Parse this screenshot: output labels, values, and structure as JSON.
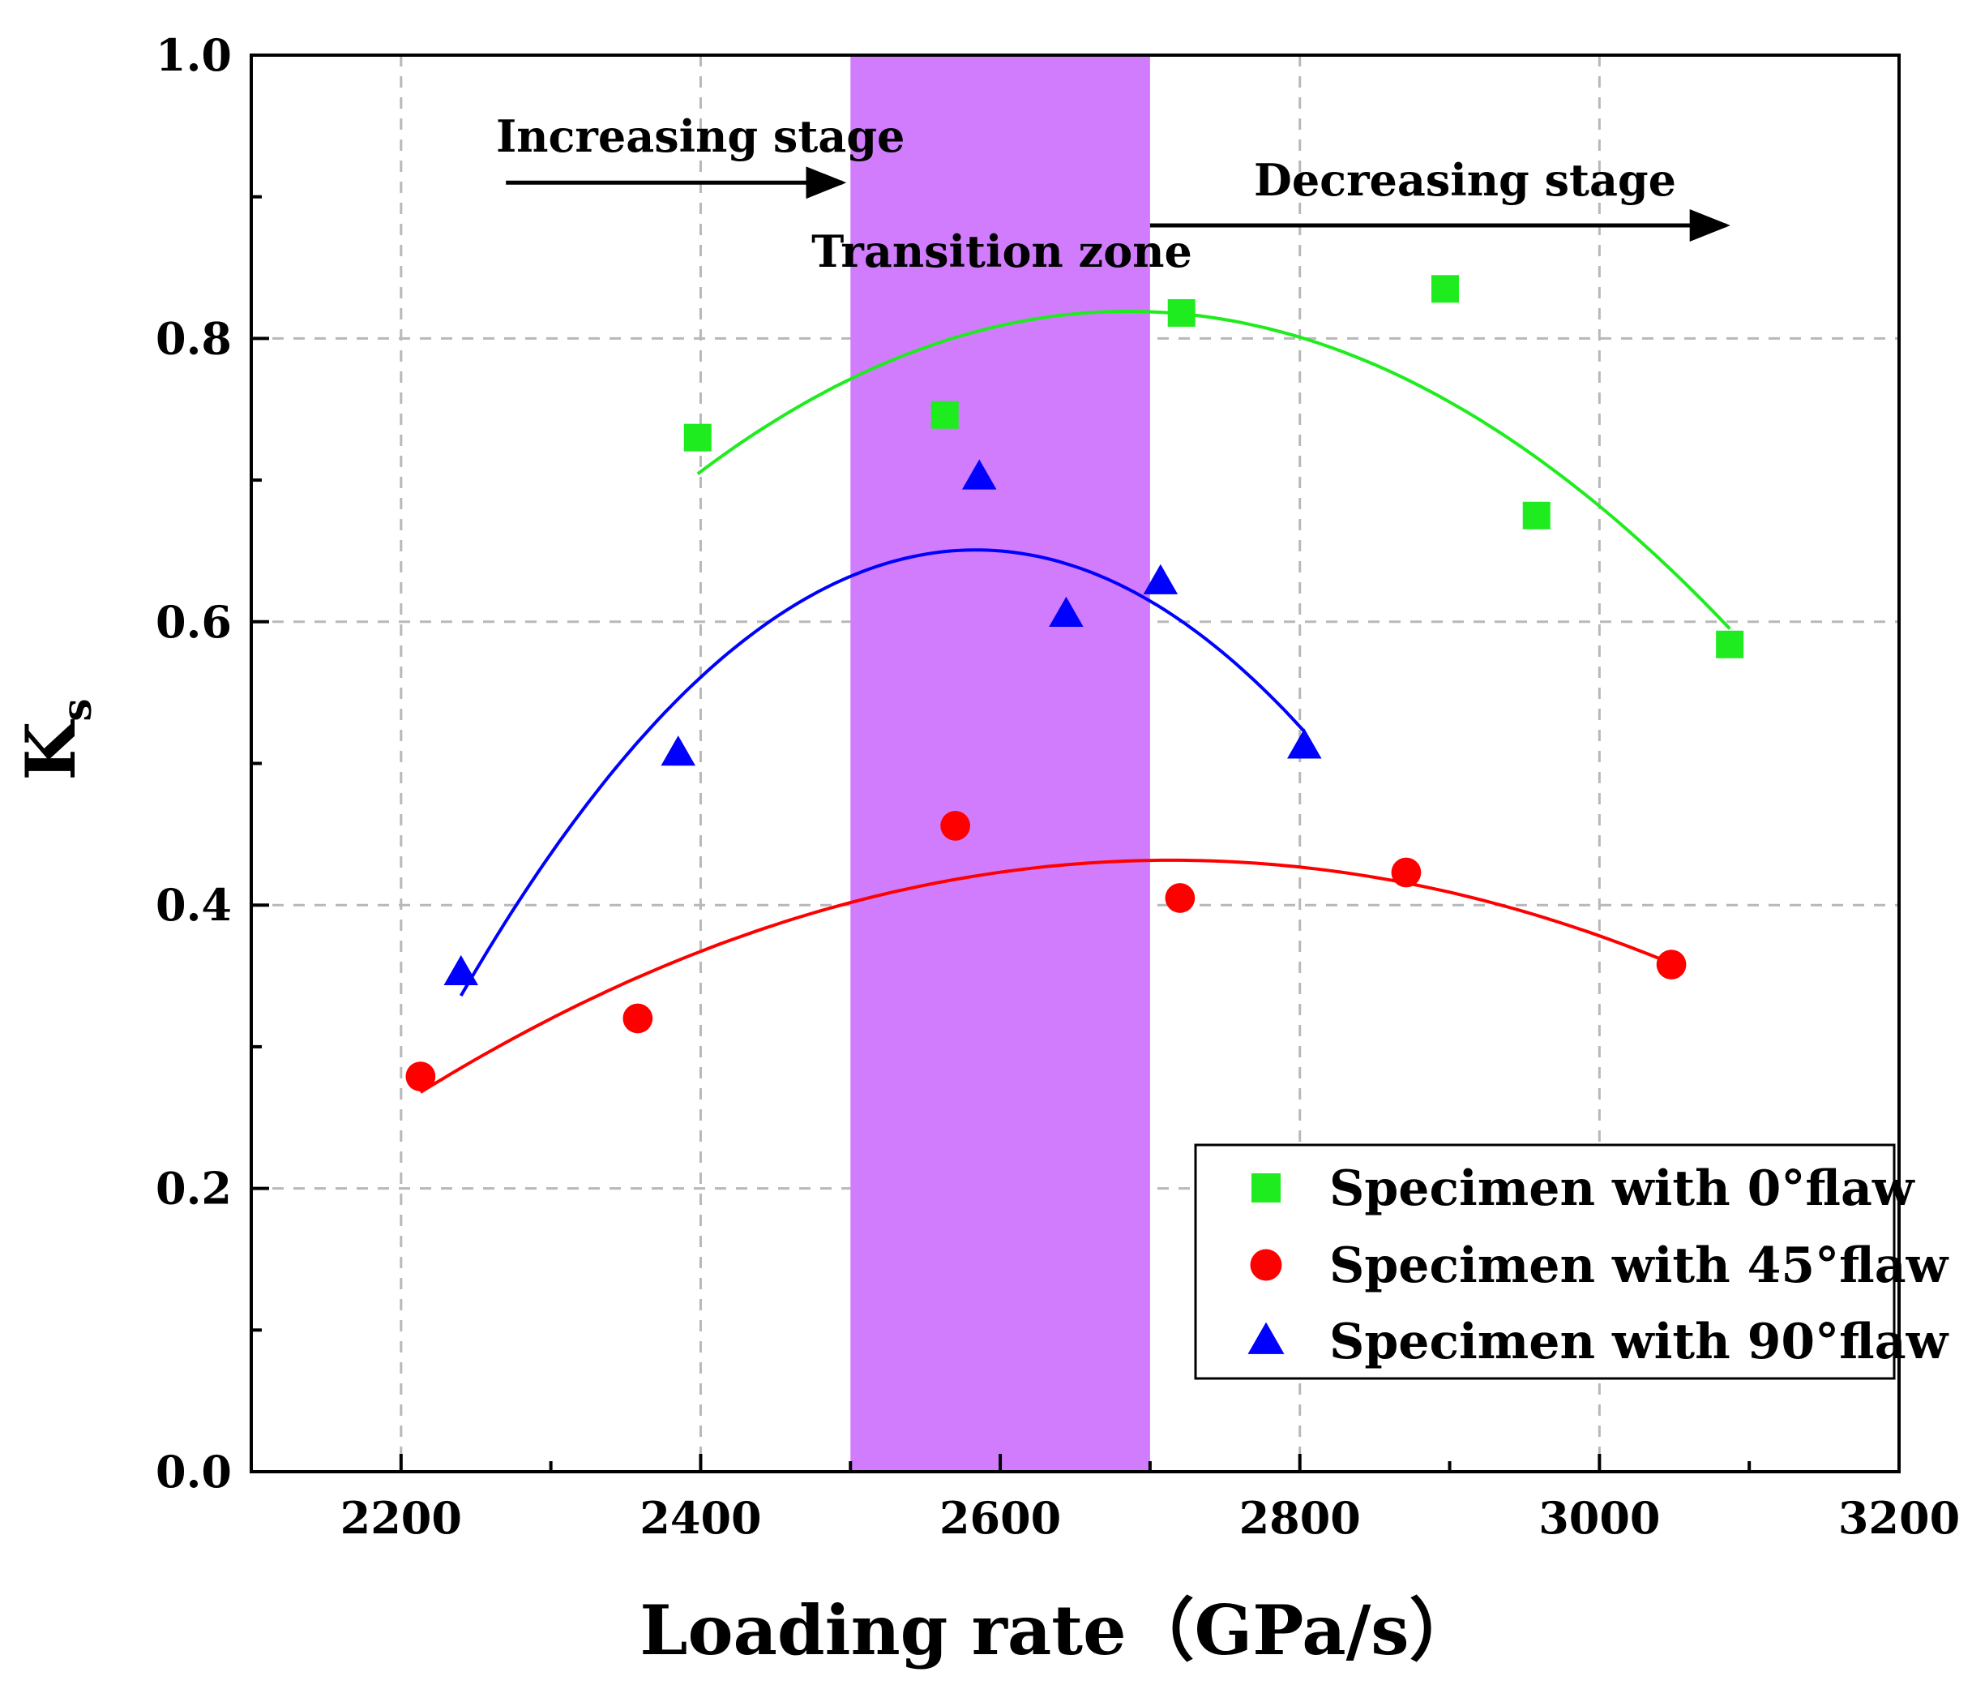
{
  "chart_data": {
    "type": "scatter",
    "xlabel": "Loading rate（GPa/s）",
    "ylabel": "K",
    "ylabel_subscript": "s",
    "xlim": [
      2100,
      3200
    ],
    "ylim": [
      0.0,
      1.0
    ],
    "x_ticks": [
      2200,
      2400,
      2600,
      2800,
      3000,
      3200
    ],
    "y_ticks": [
      0.0,
      0.2,
      0.4,
      0.6,
      0.8,
      1.0
    ],
    "x_tick_labels": [
      "2200",
      "2400",
      "2600",
      "2800",
      "3000",
      "3200"
    ],
    "y_tick_labels": [
      "0.0",
      "0.2",
      "0.4",
      "0.6",
      "0.8",
      "1.0"
    ],
    "grid": true,
    "legend_position": "bottom-right",
    "transition_zone": {
      "label": "Transition zone",
      "x_start": 2500,
      "x_end": 2700,
      "color": "#d07cfc"
    },
    "annotations": [
      {
        "text": "Increasing stage",
        "arrow_x_start": 2270,
        "arrow_x_end": 2500,
        "y": 0.91
      },
      {
        "text": "Decreasing stage",
        "arrow_x_start": 2700,
        "arrow_x_end": 3090,
        "y": 0.88
      }
    ],
    "series": [
      {
        "name": "Specimen with 0°flaw",
        "marker": "square",
        "color": "#1eec1e",
        "x": [
          2398,
          2563,
          2721,
          2897,
          2958,
          3087
        ],
        "y": [
          0.73,
          0.746,
          0.818,
          0.835,
          0.675,
          0.584
        ],
        "fit_range": [
          2398,
          3087
        ]
      },
      {
        "name": "Specimen with 45°flaw",
        "marker": "circle",
        "color": "#ff0000",
        "x": [
          2213,
          2358,
          2570,
          2720,
          2871,
          3048
        ],
        "y": [
          0.279,
          0.32,
          0.456,
          0.405,
          0.423,
          0.358
        ],
        "fit_range": [
          2213,
          3048
        ]
      },
      {
        "name": "Specimen with 90°flaw",
        "marker": "triangle",
        "color": "#0000ff",
        "x": [
          2240,
          2385,
          2586,
          2644,
          2707,
          2803
        ],
        "y": [
          0.352,
          0.507,
          0.702,
          0.605,
          0.628,
          0.512
        ],
        "fit_range": [
          2240,
          2803
        ]
      }
    ]
  }
}
